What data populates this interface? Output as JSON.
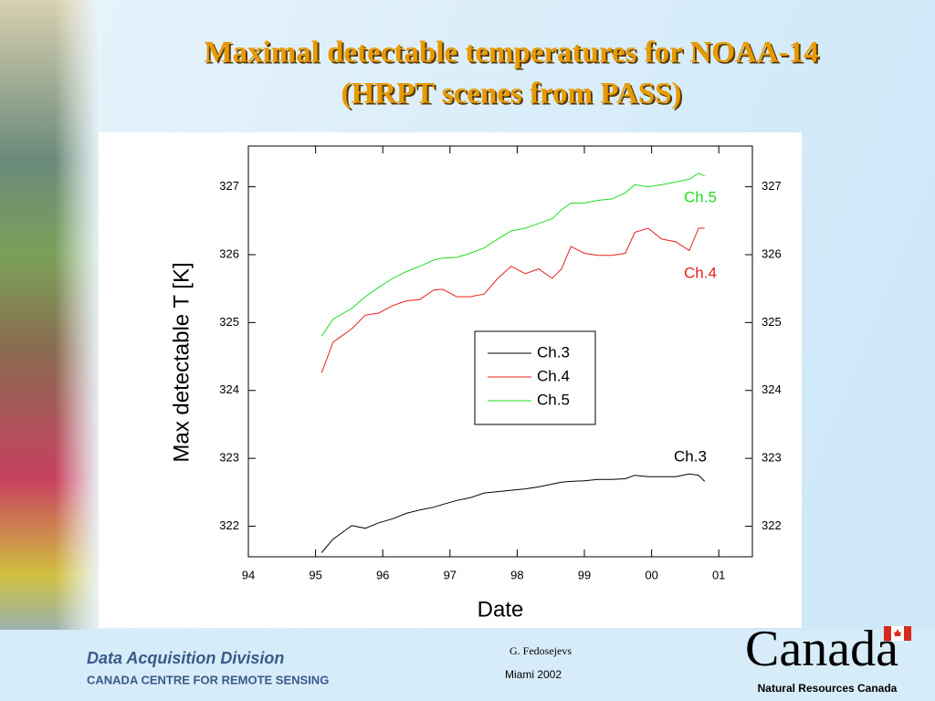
{
  "chart_data": {
    "type": "line",
    "title": "Maximal detectable temperatures for NOAA-14",
    "subtitle": "(HRPT scenes from PASS)",
    "x_label": "Date",
    "y_label": "Max detectable T [K]",
    "x": [
      1995.09,
      1995.26,
      1995.54,
      1995.74,
      1995.94,
      1996.15,
      1996.35,
      1996.55,
      1996.76,
      1996.89,
      1997.1,
      1997.3,
      1997.51,
      1997.71,
      1997.91,
      1998.12,
      1998.32,
      1998.52,
      1998.66,
      1998.8,
      1999.0,
      1999.2,
      1999.41,
      1999.61,
      1999.75,
      1999.95,
      2000.15,
      2000.36,
      2000.56,
      2000.7,
      2000.79
    ],
    "series": [
      {
        "name": "Ch.3",
        "color": "#000000",
        "values": [
          321.61,
          321.81,
          322.01,
          321.97,
          322.05,
          322.11,
          322.19,
          322.24,
          322.28,
          322.32,
          322.38,
          322.42,
          322.49,
          322.51,
          322.53,
          322.55,
          322.58,
          322.62,
          322.65,
          322.66,
          322.67,
          322.69,
          322.69,
          322.7,
          322.75,
          322.73,
          322.73,
          322.73,
          322.77,
          322.75,
          322.66
        ]
      },
      {
        "name": "Ch.4",
        "color": "#e8201e",
        "values": [
          324.26,
          324.71,
          324.91,
          325.11,
          325.14,
          325.25,
          325.32,
          325.34,
          325.48,
          325.49,
          325.38,
          325.38,
          325.42,
          325.65,
          325.83,
          325.72,
          325.79,
          325.65,
          325.79,
          326.12,
          326.02,
          325.99,
          325.99,
          326.02,
          326.33,
          326.39,
          326.23,
          326.19,
          326.06,
          326.39,
          326.39
        ]
      },
      {
        "name": "Ch.5",
        "color": "#22dd22",
        "values": [
          324.8,
          325.05,
          325.21,
          325.38,
          325.52,
          325.65,
          325.75,
          325.83,
          325.92,
          325.95,
          325.96,
          326.02,
          326.1,
          326.23,
          326.35,
          326.39,
          326.46,
          326.53,
          326.66,
          326.76,
          326.76,
          326.8,
          326.82,
          326.91,
          327.03,
          327.0,
          327.03,
          327.07,
          327.11,
          327.2,
          327.16
        ]
      }
    ],
    "annotations": [
      "Ch.5",
      "Ch.4",
      "Ch.3"
    ],
    "xlim": [
      1994,
      2001.5
    ],
    "xticks": [
      {
        "value": 1994,
        "label": "94"
      },
      {
        "value": 1995,
        "label": "95"
      },
      {
        "value": 1996,
        "label": "96"
      },
      {
        "value": 1997,
        "label": "97"
      },
      {
        "value": 1998,
        "label": "98"
      },
      {
        "value": 1999,
        "label": "99"
      },
      {
        "value": 2000,
        "label": "00"
      },
      {
        "value": 2001,
        "label": "01"
      }
    ],
    "ylim": [
      321.55,
      327.6
    ],
    "yticks": [
      322,
      323,
      324,
      325,
      326,
      327
    ],
    "y2lim": [
      321.55,
      327.6
    ],
    "y2ticks": [
      322,
      323,
      324,
      325,
      326,
      327
    ],
    "legend": "center",
    "grid": false
  },
  "footer": {
    "division": "Data Acquisition Division",
    "centre": "CANADA CENTRE FOR REMOTE SENSING",
    "author": "G. Fedosejevs",
    "event": "Miami 2002",
    "wordmark": "Canada",
    "department": "Natural Resources Canada"
  }
}
